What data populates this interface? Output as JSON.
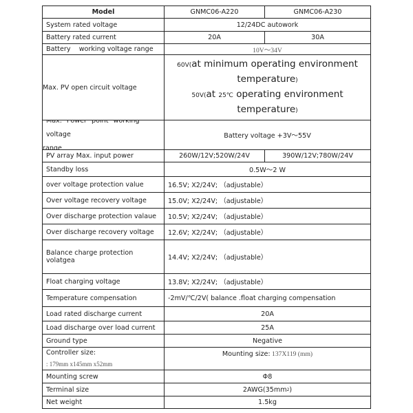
{
  "header": {
    "label": "Model",
    "col1": "GNMC06-A220",
    "col2": "GNMC06-A230"
  },
  "rows": [
    {
      "label": "System rated voltage",
      "value": "12/24DC autowork"
    },
    {
      "label": "Battery rated current",
      "col1": "20A",
      "col2": "30A"
    },
    {
      "label": "Battery    working voltage range",
      "value": "10V～34V"
    },
    {
      "label": "Max. PV open circuit voltage",
      "line1_prefix": "60V(",
      "line1": "at minimum operating environment",
      "line2": "temperature",
      "line3_prefix": "50V(",
      "line3_mid": "at ",
      "line3_temp": "25℃",
      "line3": " operating environment",
      "line4": "temperature",
      "close": ")"
    },
    {
      "label": "Max. Power point working voltage",
      "label2": "range",
      "value": "Battery voltage +3V～55V"
    },
    {
      "label": "PV array Max. input power",
      "col1": "260W/12V;520W/24V",
      "col2": "390W/12V;780W/24V"
    },
    {
      "label": "Standby loss",
      "value": "0.5W～2 W"
    },
    {
      "label": "over voltage protection value",
      "value": "16.5V; X2/24V; （adjustable）"
    },
    {
      "label": "Over voltage recovery voltage",
      "value": "15.0V; X2/24V; （adjustable）"
    },
    {
      "label": "Over discharge protection valaue",
      "value": "10.5V; X2/24V; （adjustable）"
    },
    {
      "label": "Over discharge recovery voltage",
      "value": "12.6V; X2/24V; （adjustable）"
    },
    {
      "label": "Balance charge protection volatgea",
      "value": "14.4V; X2/24V; （adjustable）"
    },
    {
      "label": "Float charging voltage",
      "value": "13.8V; X2/24V; （adjustable）"
    },
    {
      "label": "Temperature compensation",
      "value": "-2mV/℃/2V( balance .float charging compensation"
    },
    {
      "label": "Load rated discharge current",
      "value": "20A"
    },
    {
      "label": "Load discharge over load current",
      "value": "25A"
    },
    {
      "label": "Ground type",
      "value": "Negative"
    },
    {
      "label": "Controller size:",
      "label2": ": 179mm x145mm x52mm",
      "value_prefix": "Mounting size:",
      "value": " 137X119 (mm)"
    },
    {
      "label": "Mounting screw",
      "value": "Φ8"
    },
    {
      "label": "Terminal size",
      "value": "2AWG(35mm",
      "sup": "2",
      "value_suffix": ")"
    },
    {
      "label": "Net weight",
      "value": "1.5kg"
    }
  ]
}
